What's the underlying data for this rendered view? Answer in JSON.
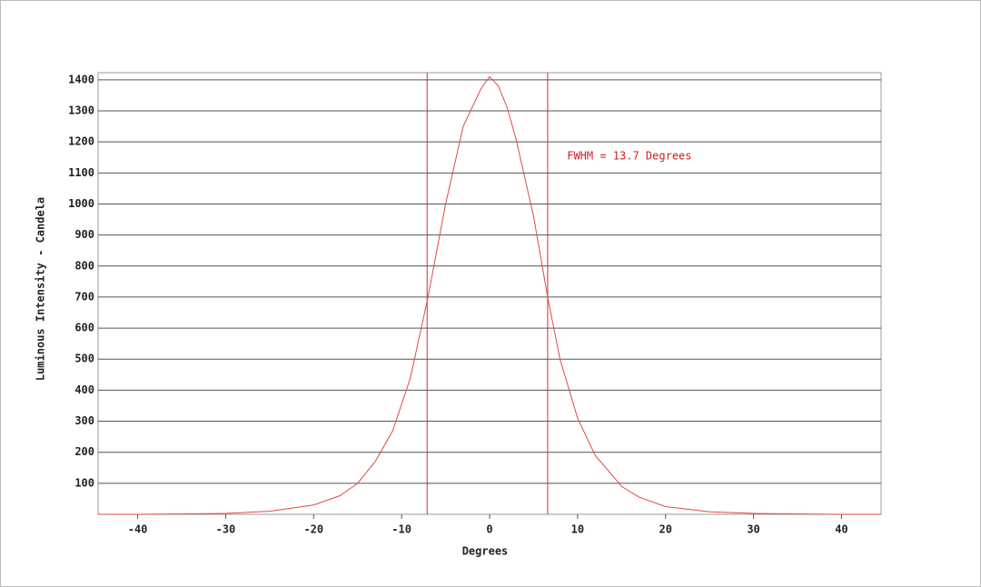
{
  "chart_data": {
    "type": "line",
    "xlabel": "Degrees",
    "ylabel": "Luminous Intensity - Candela",
    "x": [
      -44.5,
      -40,
      -35,
      -30,
      -25,
      -20,
      -17,
      -15,
      -13,
      -11,
      -9,
      -7,
      -5,
      -3,
      -2,
      -1,
      0,
      1,
      2,
      3,
      5,
      6.6,
      8,
      10,
      12,
      15,
      17,
      20,
      25,
      30,
      35,
      40,
      44.5
    ],
    "series": [
      {
        "color": "#e04848",
        "values": [
          0,
          0,
          1,
          3,
          10,
          30,
          60,
          100,
          170,
          270,
          440,
          700,
          1000,
          1250,
          1310,
          1370,
          1410,
          1380,
          1310,
          1210,
          960,
          700,
          500,
          310,
          190,
          90,
          55,
          25,
          8,
          3,
          1,
          0,
          0
        ]
      }
    ],
    "fwhm_lines": {
      "x": [
        -7.1,
        6.6
      ],
      "color": "#c83030"
    },
    "annotation": {
      "text": "FWHM = 13.7 Degrees",
      "x": 8.8,
      "y": 1153,
      "color": "#d02020"
    },
    "xlim": [
      -44.5,
      44.5
    ],
    "ylim": [
      0,
      1423
    ],
    "xticks": [
      -40,
      -30,
      -20,
      -10,
      0,
      10,
      20,
      30,
      40
    ],
    "yticks": [
      100,
      200,
      300,
      400,
      500,
      600,
      700,
      800,
      900,
      1000,
      1100,
      1200,
      1300,
      1400
    ],
    "grid": true
  }
}
